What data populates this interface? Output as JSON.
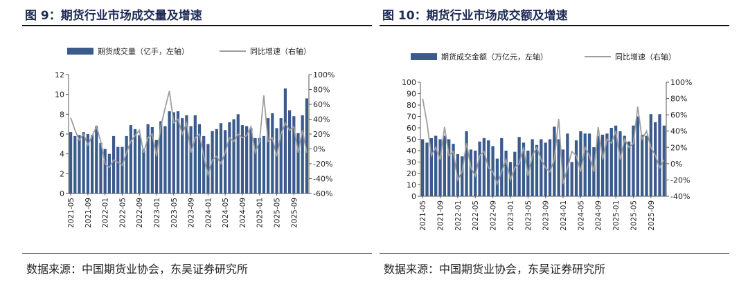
{
  "chart_data": [
    {
      "type": "bar",
      "figure_title": "图 9：期货行业市场成交量及增速",
      "source": "数据来源：中国期货业协会，东吴证券研究所",
      "legend": [
        "期货成交量（亿手，左轴）",
        "同比增速（右轴）"
      ],
      "legend_placement": "top",
      "x": [
        "2021-05",
        "2021-06",
        "2021-07",
        "2021-08",
        "2021-09",
        "2021-10",
        "2021-11",
        "2021-12",
        "2022-01",
        "2022-02",
        "2022-03",
        "2022-04",
        "2022-05",
        "2022-06",
        "2022-07",
        "2022-08",
        "2022-09",
        "2022-10",
        "2022-11",
        "2022-12",
        "2023-01",
        "2023-02",
        "2023-03",
        "2023-04",
        "2023-05",
        "2023-06",
        "2023-07",
        "2023-08",
        "2023-09",
        "2023-10",
        "2023-11",
        "2023-12",
        "2024-01",
        "2024-02",
        "2024-03",
        "2024-04",
        "2024-05",
        "2024-06",
        "2024-07",
        "2024-08",
        "2024-09",
        "2024-10",
        "2024-11",
        "2024-12",
        "2025-01",
        "2025-02",
        "2025-03",
        "2025-04",
        "2025-05",
        "2025-06",
        "2025-07",
        "2025-08",
        "2025-09",
        "2025-10",
        "2025-11",
        "2025-12"
      ],
      "x_tick_labels": [
        "2021-05",
        "2021-09",
        "2022-01",
        "2022-05",
        "2022-09",
        "2023-01",
        "2023-05",
        "2023-09",
        "2024-01",
        "2024-05",
        "2024-09",
        "2025-01",
        "2025-05",
        "2025-09"
      ],
      "ylim_left": [
        0,
        12
      ],
      "yticks_left": [
        "0",
        "2",
        "4",
        "6",
        "8",
        "10",
        "12"
      ],
      "ylim_right": [
        -60,
        100
      ],
      "yticks_right": [
        "-60%",
        "-40%",
        "-20%",
        "0%",
        "20%",
        "40%",
        "60%",
        "80%",
        "100%"
      ],
      "series": [
        {
          "name": "期货成交量（亿手，左轴）",
          "type": "bar",
          "axis": "left",
          "color": "#3b5b8c",
          "values": [
            6.2,
            5.8,
            5.9,
            6.2,
            6.0,
            5.9,
            6.8,
            5.1,
            4.5,
            4.0,
            5.8,
            4.7,
            4.7,
            5.8,
            6.9,
            6.5,
            5.9,
            4.5,
            7.0,
            6.7,
            5.4,
            7.3,
            6.8,
            8.3,
            8.2,
            8.3,
            7.6,
            7.9,
            6.8,
            7.9,
            7.0,
            5.8,
            5.0,
            6.3,
            6.5,
            7.1,
            6.4,
            7.2,
            7.5,
            8.0,
            6.9,
            6.8,
            6.6,
            5.6,
            5.6,
            5.8,
            7.6,
            8.1,
            6.6,
            7.6,
            10.6,
            8.4,
            7.8,
            6.1,
            7.9,
            9.6
          ]
        },
        {
          "name": "同比增速（右轴）",
          "type": "line",
          "axis": "right",
          "color": "#9e9e9e",
          "values": [
            42,
            25,
            12,
            20,
            5,
            18,
            30,
            10,
            -20,
            -25,
            -15,
            -18,
            -22,
            -5,
            10,
            18,
            25,
            -5,
            15,
            20,
            -10,
            30,
            55,
            78,
            35,
            40,
            20,
            35,
            -5,
            15,
            20,
            -10,
            -35,
            -15,
            -10,
            -20,
            -5,
            15,
            10,
            20,
            15,
            18,
            30,
            -5,
            10,
            72,
            10,
            15,
            -10,
            20,
            35,
            25,
            30,
            -5,
            25,
            -5
          ]
        }
      ]
    },
    {
      "type": "bar",
      "figure_title": "图 10：期货行业市场成交额及增速",
      "source": "数据来源：中国期货业协会，东吴证券研究所",
      "legend": [
        "期货成交金额（万亿元，左轴）",
        "同比增速（右轴）"
      ],
      "legend_placement": "top",
      "x": [
        "2021-05",
        "2021-06",
        "2021-07",
        "2021-08",
        "2021-09",
        "2021-10",
        "2021-11",
        "2021-12",
        "2022-01",
        "2022-02",
        "2022-03",
        "2022-04",
        "2022-05",
        "2022-06",
        "2022-07",
        "2022-08",
        "2022-09",
        "2022-10",
        "2022-11",
        "2022-12",
        "2023-01",
        "2023-02",
        "2023-03",
        "2023-04",
        "2023-05",
        "2023-06",
        "2023-07",
        "2023-08",
        "2023-09",
        "2023-10",
        "2023-11",
        "2023-12",
        "2024-01",
        "2024-02",
        "2024-03",
        "2024-04",
        "2024-05",
        "2024-06",
        "2024-07",
        "2024-08",
        "2024-09",
        "2024-10",
        "2024-11",
        "2024-12",
        "2025-01",
        "2025-02",
        "2025-03",
        "2025-04",
        "2025-05",
        "2025-06",
        "2025-07",
        "2025-08",
        "2025-09",
        "2025-10",
        "2025-11",
        "2025-12"
      ],
      "x_tick_labels": [
        "2021-05",
        "2021-09",
        "2022-01",
        "2022-05",
        "2022-09",
        "2023-01",
        "2023-05",
        "2023-09",
        "2024-01",
        "2024-05",
        "2024-09",
        "2025-01",
        "2025-05",
        "2025-09"
      ],
      "ylim_left": [
        0,
        100
      ],
      "yticks_left": [
        "0",
        "10",
        "20",
        "30",
        "40",
        "50",
        "60",
        "70",
        "80",
        "90",
        "100"
      ],
      "ylim_right": [
        -40,
        100
      ],
      "yticks_right": [
        "-40%",
        "-20%",
        "0%",
        "20%",
        "40%",
        "60%",
        "80%",
        "100%"
      ],
      "series": [
        {
          "name": "期货成交金额（万亿元，左轴）",
          "type": "bar",
          "axis": "left",
          "color": "#3b5b8c",
          "values": [
            50,
            47,
            51,
            53,
            50,
            53,
            50,
            46,
            37,
            35,
            57,
            41,
            40,
            48,
            51,
            49,
            44,
            33,
            51,
            40,
            30,
            39,
            52,
            47,
            40,
            50,
            45,
            50,
            47,
            50,
            61,
            50,
            41,
            55,
            30,
            49,
            57,
            55,
            55,
            43,
            53,
            54,
            55,
            60,
            62,
            57,
            53,
            48,
            62,
            70,
            54,
            53,
            72,
            65,
            72,
            62
          ]
        },
        {
          "name": "同比增速（右轴）",
          "type": "line",
          "axis": "right",
          "color": "#9e9e9e",
          "values": [
            80,
            50,
            10,
            20,
            5,
            45,
            10,
            15,
            -20,
            -10,
            25,
            -5,
            -15,
            10,
            15,
            -5,
            -10,
            -25,
            -10,
            5,
            -20,
            -5,
            0,
            20,
            -15,
            10,
            20,
            5,
            -5,
            -10,
            5,
            55,
            -25,
            -5,
            15,
            10,
            -10,
            20,
            10,
            -10,
            45,
            5,
            30,
            25,
            40,
            5,
            30,
            20,
            25,
            70,
            30,
            40,
            20,
            10,
            -5,
            5
          ]
        }
      ]
    }
  ]
}
